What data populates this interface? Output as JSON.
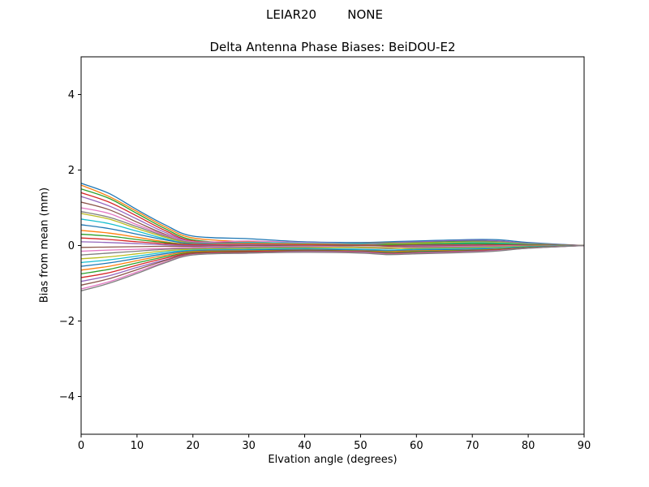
{
  "chart_data": {
    "type": "line",
    "suptitle": "LEIAR20        NONE",
    "title": "Delta Antenna Phase Biases: BeiDOU-E2",
    "xlabel": "Elvation angle (degrees)",
    "ylabel": "Bias from mean (mm)",
    "xlim": [
      0,
      90
    ],
    "ylim": [
      -5,
      5
    ],
    "xticks": [
      0,
      10,
      20,
      30,
      40,
      50,
      60,
      70,
      80,
      90
    ],
    "yticks": [
      -4,
      -2,
      0,
      2,
      4
    ],
    "grid": false,
    "legend": "none",
    "x": [
      0,
      5,
      10,
      15,
      20,
      30,
      40,
      50,
      55,
      60,
      70,
      75,
      80,
      90
    ],
    "series": [
      {
        "name": "line-01",
        "color": "#1f77b4",
        "values": [
          1.65,
          1.38,
          0.95,
          0.55,
          0.25,
          0.18,
          0.1,
          0.08,
          0.1,
          0.12,
          0.16,
          0.15,
          0.08,
          0
        ]
      },
      {
        "name": "line-02",
        "color": "#ff7f0e",
        "values": [
          1.6,
          1.3,
          0.9,
          0.5,
          0.2,
          0.1,
          0.05,
          0.03,
          0.02,
          0.05,
          0.1,
          0.08,
          0.04,
          0
        ]
      },
      {
        "name": "line-03",
        "color": "#2ca02c",
        "values": [
          1.5,
          1.25,
          0.85,
          0.45,
          0.15,
          0.05,
          0.02,
          0.04,
          0.06,
          0.08,
          0.12,
          0.1,
          0.05,
          0
        ]
      },
      {
        "name": "line-04",
        "color": "#d62728",
        "values": [
          1.4,
          1.15,
          0.78,
          0.4,
          0.12,
          0.08,
          0.06,
          0.02,
          -0.02,
          0.0,
          0.05,
          0.06,
          0.03,
          0
        ]
      },
      {
        "name": "line-05",
        "color": "#9467bd",
        "values": [
          1.3,
          1.05,
          0.7,
          0.35,
          0.1,
          0.05,
          0.03,
          0.05,
          0.08,
          0.1,
          0.14,
          0.12,
          0.06,
          0
        ]
      },
      {
        "name": "line-06",
        "color": "#8c564b",
        "values": [
          1.15,
          0.95,
          0.62,
          0.3,
          0.08,
          0.04,
          0.02,
          0.0,
          0.02,
          0.04,
          0.08,
          0.07,
          0.03,
          0
        ]
      },
      {
        "name": "line-07",
        "color": "#e377c2",
        "values": [
          1.0,
          0.85,
          0.55,
          0.28,
          0.1,
          0.12,
          0.08,
          0.05,
          0.03,
          0.02,
          0.06,
          0.08,
          0.04,
          0
        ]
      },
      {
        "name": "line-08",
        "color": "#7f7f7f",
        "values": [
          0.9,
          0.75,
          0.5,
          0.25,
          0.08,
          0.06,
          0.04,
          0.06,
          0.08,
          0.06,
          0.1,
          0.09,
          0.05,
          0
        ]
      },
      {
        "name": "line-09",
        "color": "#bcbd22",
        "values": [
          0.85,
          0.7,
          0.45,
          0.22,
          0.06,
          0.02,
          0.0,
          0.02,
          0.04,
          0.06,
          0.09,
          0.08,
          0.04,
          0
        ]
      },
      {
        "name": "line-10",
        "color": "#17becf",
        "values": [
          0.7,
          0.58,
          0.38,
          0.18,
          0.05,
          0.08,
          0.06,
          0.04,
          0.02,
          0.03,
          0.07,
          0.06,
          0.03,
          0
        ]
      },
      {
        "name": "line-11",
        "color": "#1f77b4",
        "values": [
          0.55,
          0.45,
          0.3,
          0.15,
          0.05,
          0.03,
          0.02,
          0.01,
          0.0,
          0.02,
          0.05,
          0.04,
          0.02,
          0
        ]
      },
      {
        "name": "line-12",
        "color": "#ff7f0e",
        "values": [
          0.4,
          0.33,
          0.22,
          0.1,
          0.03,
          0.05,
          0.04,
          0.02,
          0.01,
          0.0,
          0.03,
          0.03,
          0.02,
          0
        ]
      },
      {
        "name": "line-13",
        "color": "#2ca02c",
        "values": [
          0.3,
          0.25,
          0.16,
          0.08,
          0.02,
          0.0,
          -0.02,
          0.0,
          0.02,
          0.03,
          0.05,
          0.04,
          0.02,
          0
        ]
      },
      {
        "name": "line-14",
        "color": "#d62728",
        "values": [
          0.2,
          0.16,
          0.1,
          0.05,
          0.02,
          0.03,
          0.02,
          0.01,
          0.0,
          0.01,
          0.02,
          0.02,
          0.01,
          0
        ]
      },
      {
        "name": "line-15",
        "color": "#9467bd",
        "values": [
          0.1,
          0.08,
          0.05,
          0.02,
          0.0,
          0.02,
          0.01,
          0.0,
          -0.01,
          0.0,
          0.01,
          0.01,
          0.0,
          0
        ]
      },
      {
        "name": "line-16",
        "color": "#8c564b",
        "values": [
          -0.05,
          -0.04,
          -0.03,
          -0.02,
          -0.02,
          0.0,
          0.01,
          0.0,
          -0.01,
          -0.02,
          0.0,
          0.01,
          0.0,
          0
        ]
      },
      {
        "name": "line-17",
        "color": "#e377c2",
        "values": [
          -0.15,
          -0.12,
          -0.1,
          -0.08,
          -0.05,
          -0.03,
          -0.02,
          -0.04,
          -0.05,
          -0.04,
          -0.02,
          -0.01,
          -0.01,
          0
        ]
      },
      {
        "name": "line-18",
        "color": "#7f7f7f",
        "values": [
          -0.25,
          -0.2,
          -0.15,
          -0.1,
          -0.08,
          -0.05,
          -0.04,
          -0.06,
          -0.08,
          -0.06,
          -0.04,
          -0.03,
          -0.02,
          0
        ]
      },
      {
        "name": "line-19",
        "color": "#bcbd22",
        "values": [
          -0.35,
          -0.3,
          -0.22,
          -0.14,
          -0.1,
          -0.08,
          -0.06,
          -0.05,
          -0.06,
          -0.08,
          -0.06,
          -0.04,
          -0.02,
          0
        ]
      },
      {
        "name": "line-20",
        "color": "#17becf",
        "values": [
          -0.45,
          -0.38,
          -0.28,
          -0.18,
          -0.12,
          -0.1,
          -0.08,
          -0.1,
          -0.12,
          -0.1,
          -0.08,
          -0.06,
          -0.03,
          0
        ]
      },
      {
        "name": "line-21",
        "color": "#1f77b4",
        "values": [
          -0.55,
          -0.46,
          -0.34,
          -0.22,
          -0.14,
          -0.12,
          -0.1,
          -0.12,
          -0.14,
          -0.12,
          -0.1,
          -0.08,
          -0.04,
          0
        ]
      },
      {
        "name": "line-22",
        "color": "#ff7f0e",
        "values": [
          -0.65,
          -0.55,
          -0.4,
          -0.26,
          -0.16,
          -0.14,
          -0.12,
          -0.14,
          -0.16,
          -0.14,
          -0.12,
          -0.09,
          -0.05,
          0
        ]
      },
      {
        "name": "line-23",
        "color": "#2ca02c",
        "values": [
          -0.75,
          -0.63,
          -0.46,
          -0.3,
          -0.18,
          -0.15,
          -0.13,
          -0.15,
          -0.18,
          -0.16,
          -0.13,
          -0.1,
          -0.05,
          0
        ]
      },
      {
        "name": "line-24",
        "color": "#d62728",
        "values": [
          -0.85,
          -0.72,
          -0.52,
          -0.34,
          -0.2,
          -0.16,
          -0.14,
          -0.16,
          -0.2,
          -0.18,
          -0.14,
          -0.11,
          -0.06,
          0
        ]
      },
      {
        "name": "line-25",
        "color": "#9467bd",
        "values": [
          -0.95,
          -0.8,
          -0.58,
          -0.38,
          -0.22,
          -0.18,
          -0.15,
          -0.17,
          -0.21,
          -0.19,
          -0.15,
          -0.12,
          -0.06,
          0
        ]
      },
      {
        "name": "line-26",
        "color": "#8c564b",
        "values": [
          -1.05,
          -0.88,
          -0.64,
          -0.4,
          -0.22,
          -0.18,
          -0.16,
          -0.18,
          -0.22,
          -0.2,
          -0.16,
          -0.12,
          -0.06,
          0
        ]
      },
      {
        "name": "line-27",
        "color": "#e377c2",
        "values": [
          -1.15,
          -0.96,
          -0.7,
          -0.44,
          -0.24,
          -0.2,
          -0.17,
          -0.19,
          -0.23,
          -0.21,
          -0.17,
          -0.13,
          -0.07,
          0
        ]
      },
      {
        "name": "line-28",
        "color": "#7f7f7f",
        "values": [
          -1.2,
          -1.0,
          -0.74,
          -0.46,
          -0.25,
          -0.2,
          -0.18,
          -0.2,
          -0.24,
          -0.22,
          -0.18,
          -0.14,
          -0.07,
          0
        ]
      }
    ]
  },
  "colors": {
    "axes": "#000000",
    "background": "#ffffff"
  }
}
